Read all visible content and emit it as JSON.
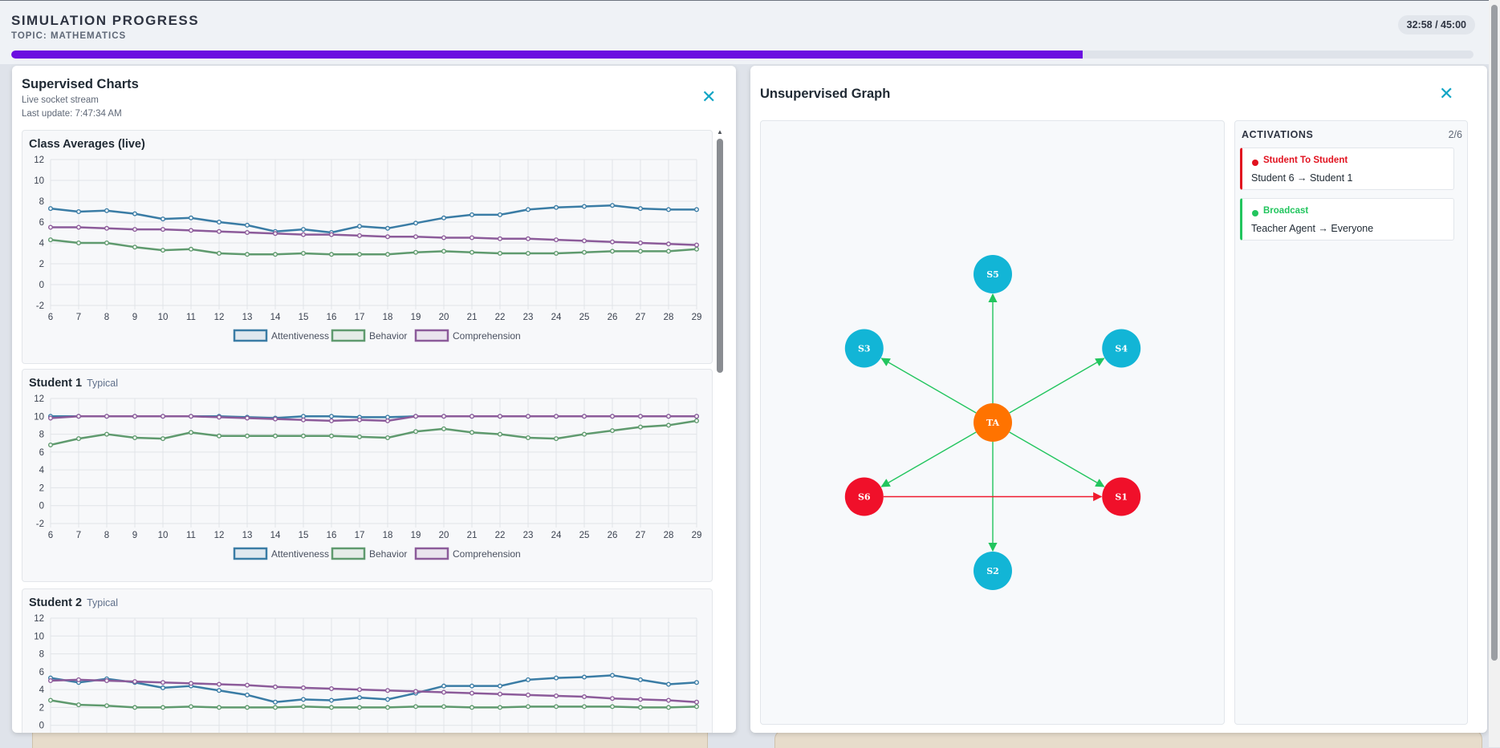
{
  "header": {
    "title": "SIMULATION PROGRESS",
    "topic": "TOPIC: MATHEMATICS",
    "timer": "32:58 / 45:00",
    "progress": 0.7325
  },
  "supervised": {
    "title": "Supervised Charts",
    "subtitle": "Live socket stream",
    "last_update": "Last update: 7:47:34 AM",
    "close_icon": "close-icon"
  },
  "colors": {
    "attentiveness": "#3a7ca5",
    "behavior": "#5f9a6e",
    "comprehension": "#8c5b9a",
    "teacher_node": "#ff7300",
    "student_node": "#12b5d6",
    "active_node": "#f0102a",
    "edge_green": "#22c55e",
    "edge_red": "#ef1a2d",
    "progress": "#6b0ee0"
  },
  "chart_data": [
    {
      "type": "line",
      "title": "Class Averages (live)",
      "tag": "",
      "x": [
        6,
        7,
        8,
        9,
        10,
        11,
        12,
        13,
        14,
        15,
        16,
        17,
        18,
        19,
        20,
        21,
        22,
        23,
        24,
        25,
        26,
        27,
        28,
        29
      ],
      "ylim": [
        -2,
        12
      ],
      "yticks": [
        "12",
        "10",
        "8",
        "6",
        "4",
        "2",
        "0",
        "-2"
      ],
      "xticks": [
        "6",
        "7",
        "8",
        "9",
        "10",
        "11",
        "12",
        "13",
        "14",
        "15",
        "16",
        "17",
        "18",
        "19",
        "20",
        "21",
        "22",
        "23",
        "24",
        "25",
        "26",
        "27",
        "28",
        "29"
      ],
      "grid": true,
      "legend_position": "bottom",
      "legend": [
        "Attentiveness",
        "Behavior",
        "Comprehension"
      ],
      "series": [
        {
          "name": "Attentiveness",
          "values": [
            7.3,
            7.0,
            7.1,
            6.8,
            6.3,
            6.4,
            6.0,
            5.7,
            5.1,
            5.3,
            5.0,
            5.6,
            5.4,
            5.9,
            6.4,
            6.7,
            6.7,
            7.2,
            7.4,
            7.5,
            7.6,
            7.3,
            7.2,
            7.2
          ]
        },
        {
          "name": "Behavior",
          "values": [
            4.3,
            4.0,
            4.0,
            3.6,
            3.3,
            3.4,
            3.0,
            2.9,
            2.9,
            3.0,
            2.9,
            2.9,
            2.9,
            3.1,
            3.2,
            3.1,
            3.0,
            3.0,
            3.0,
            3.1,
            3.2,
            3.2,
            3.2,
            3.4
          ]
        },
        {
          "name": "Comprehension",
          "values": [
            5.5,
            5.5,
            5.4,
            5.3,
            5.3,
            5.2,
            5.1,
            5.0,
            4.9,
            4.8,
            4.8,
            4.7,
            4.6,
            4.6,
            4.5,
            4.5,
            4.4,
            4.4,
            4.3,
            4.2,
            4.1,
            4.0,
            3.9,
            3.8
          ]
        }
      ]
    },
    {
      "type": "line",
      "title": "Student 1",
      "tag": "Typical",
      "x": [
        6,
        7,
        8,
        9,
        10,
        11,
        12,
        13,
        14,
        15,
        16,
        17,
        18,
        19,
        20,
        21,
        22,
        23,
        24,
        25,
        26,
        27,
        28,
        29
      ],
      "ylim": [
        -2,
        12
      ],
      "yticks": [
        "12",
        "10",
        "8",
        "6",
        "4",
        "2",
        "0",
        "-2"
      ],
      "xticks": [
        "6",
        "7",
        "8",
        "9",
        "10",
        "11",
        "12",
        "13",
        "14",
        "15",
        "16",
        "17",
        "18",
        "19",
        "20",
        "21",
        "22",
        "23",
        "24",
        "25",
        "26",
        "27",
        "28",
        "29"
      ],
      "grid": true,
      "legend_position": "bottom",
      "legend": [
        "Attentiveness",
        "Behavior",
        "Comprehension"
      ],
      "series": [
        {
          "name": "Attentiveness",
          "values": [
            10,
            10,
            10,
            10,
            10,
            10,
            10,
            9.9,
            9.8,
            10,
            10,
            9.9,
            9.9,
            10,
            10,
            10,
            10,
            10,
            10,
            10,
            10,
            10,
            10,
            10
          ]
        },
        {
          "name": "Behavior",
          "values": [
            6.8,
            7.5,
            8.0,
            7.6,
            7.5,
            8.2,
            7.8,
            7.8,
            7.8,
            7.8,
            7.8,
            7.7,
            7.6,
            8.3,
            8.6,
            8.2,
            8.0,
            7.6,
            7.5,
            8.0,
            8.4,
            8.8,
            9.0,
            9.5
          ]
        },
        {
          "name": "Comprehension",
          "values": [
            9.8,
            10,
            10,
            10,
            10,
            10,
            9.9,
            9.8,
            9.7,
            9.6,
            9.5,
            9.6,
            9.5,
            10,
            10,
            10,
            10,
            10,
            10,
            10,
            10,
            10,
            10,
            10
          ]
        }
      ]
    },
    {
      "type": "line",
      "title": "Student 2",
      "tag": "Typical",
      "x": [
        6,
        7,
        8,
        9,
        10,
        11,
        12,
        13,
        14,
        15,
        16,
        17,
        18,
        19,
        20,
        21,
        22,
        23,
        24,
        25,
        26,
        27,
        28,
        29
      ],
      "ylim": [
        -2,
        12
      ],
      "yticks": [
        "12",
        "10",
        "8",
        "6",
        "4",
        "2",
        "0",
        "-2"
      ],
      "xticks": [],
      "grid": true,
      "legend_position": "bottom",
      "legend": [],
      "series": [
        {
          "name": "Attentiveness",
          "values": [
            5.3,
            4.8,
            5.2,
            4.8,
            4.2,
            4.4,
            3.9,
            3.4,
            2.6,
            2.9,
            2.8,
            3.1,
            2.9,
            3.6,
            4.4,
            4.4,
            4.4,
            5.1,
            5.3,
            5.4,
            5.6,
            5.1,
            4.6,
            4.8
          ]
        },
        {
          "name": "Behavior",
          "values": [
            2.8,
            2.3,
            2.2,
            2.0,
            2.0,
            2.1,
            2.0,
            2.0,
            2.0,
            2.1,
            2.0,
            2.0,
            2.0,
            2.1,
            2.1,
            2.0,
            2.0,
            2.1,
            2.1,
            2.1,
            2.1,
            2.0,
            2.0,
            2.1
          ]
        },
        {
          "name": "Comprehension",
          "values": [
            5.0,
            5.1,
            5.0,
            4.9,
            4.8,
            4.7,
            4.6,
            4.5,
            4.3,
            4.2,
            4.1,
            4.0,
            3.9,
            3.8,
            3.7,
            3.6,
            3.5,
            3.4,
            3.3,
            3.2,
            3.0,
            2.9,
            2.8,
            2.6
          ]
        }
      ]
    }
  ],
  "unsupervised": {
    "title": "Unsupervised Graph",
    "close_icon": "close-icon",
    "nodes": [
      {
        "id": "TA",
        "role": "teacher"
      },
      {
        "id": "S5",
        "role": "student"
      },
      {
        "id": "S4",
        "role": "student"
      },
      {
        "id": "S1",
        "role": "active"
      },
      {
        "id": "S2",
        "role": "student"
      },
      {
        "id": "S6",
        "role": "active"
      },
      {
        "id": "S3",
        "role": "student"
      }
    ],
    "edges": [
      {
        "from": "TA",
        "to": "S5",
        "kind": "broadcast"
      },
      {
        "from": "TA",
        "to": "S4",
        "kind": "broadcast"
      },
      {
        "from": "TA",
        "to": "S1",
        "kind": "broadcast"
      },
      {
        "from": "TA",
        "to": "S2",
        "kind": "broadcast"
      },
      {
        "from": "TA",
        "to": "S6",
        "kind": "broadcast"
      },
      {
        "from": "TA",
        "to": "S3",
        "kind": "broadcast"
      },
      {
        "from": "S6",
        "to": "S1",
        "kind": "direct"
      }
    ]
  },
  "activations": {
    "title": "ACTIVATIONS",
    "count": "2/6",
    "items": [
      {
        "type": "Student To Student",
        "desc": "Student 6 → Student 1",
        "color": "#e1121f"
      },
      {
        "type": "Broadcast",
        "desc": "Teacher Agent → Everyone",
        "color": "#22c55e"
      }
    ]
  }
}
